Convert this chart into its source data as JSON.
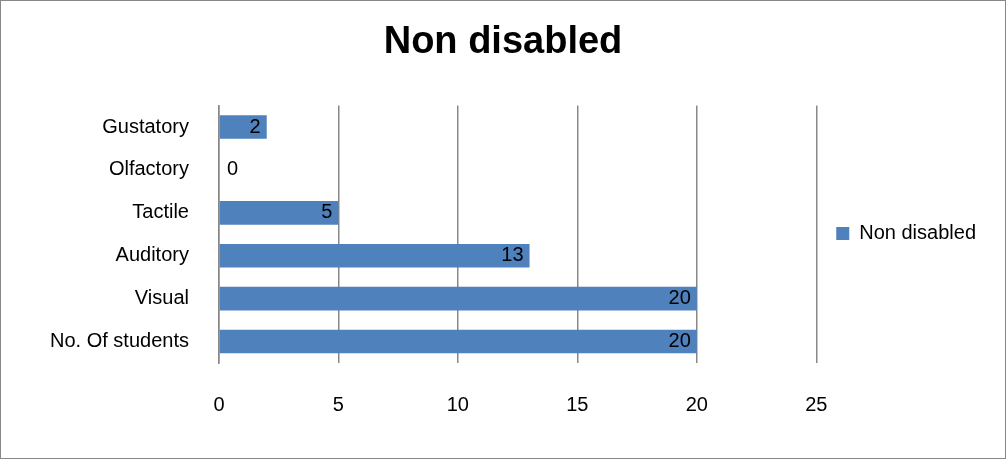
{
  "chart_data": {
    "type": "bar",
    "orientation": "horizontal",
    "title": "Non disabled",
    "categories": [
      "Gustatory",
      "Olfactory",
      "Tactile",
      "Auditory",
      "Visual",
      "No. Of students"
    ],
    "series": [
      {
        "name": "Non disabled",
        "color": "#4f81bd",
        "values": [
          2,
          0,
          5,
          13,
          20,
          20
        ]
      }
    ],
    "xlim": [
      0,
      25
    ],
    "xticks": [
      0,
      5,
      10,
      15,
      20,
      25
    ],
    "grid": "x",
    "legend": "right",
    "data_labels": true
  }
}
